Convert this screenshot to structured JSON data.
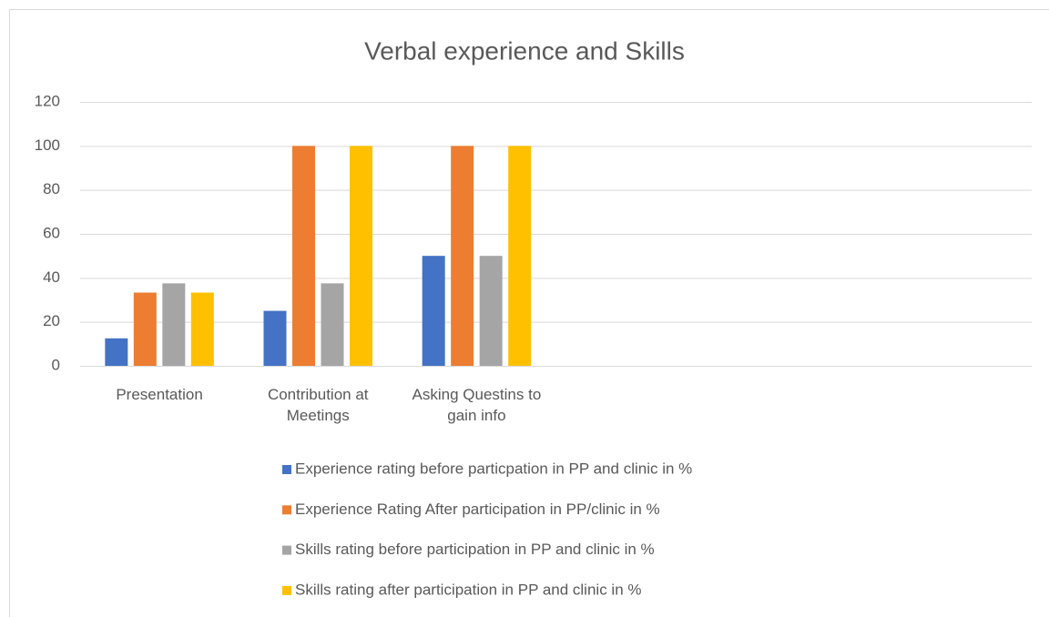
{
  "chart_data": {
    "type": "bar",
    "title": "Verbal experience and Skills",
    "categories": [
      "Presentation",
      "Contribution at Meetings",
      "Asking Questins to gain info",
      null,
      null,
      null
    ],
    "series": [
      {
        "name": "Experience rating before particpation in PP and clinic in %",
        "color": "#4472c4",
        "values": [
          12.5,
          25,
          50,
          null,
          null,
          null
        ]
      },
      {
        "name": "Experience Rating After participation in PP/clinic in %",
        "color": "#ed7d31",
        "values": [
          33.3,
          100,
          100,
          null,
          null,
          null
        ]
      },
      {
        "name": "Skills rating before participation in PP and clinic in %",
        "color": "#a5a5a5",
        "values": [
          37.5,
          37.5,
          50,
          null,
          null,
          null
        ]
      },
      {
        "name": "Skills rating after participation in PP and clinic in %",
        "color": "#ffc000",
        "values": [
          33.3,
          100,
          100,
          null,
          null,
          null
        ]
      }
    ],
    "ylim": [
      0,
      120
    ],
    "yticks": [
      0,
      20,
      40,
      60,
      80,
      100,
      120
    ],
    "grid": true,
    "legend": "bottom"
  }
}
